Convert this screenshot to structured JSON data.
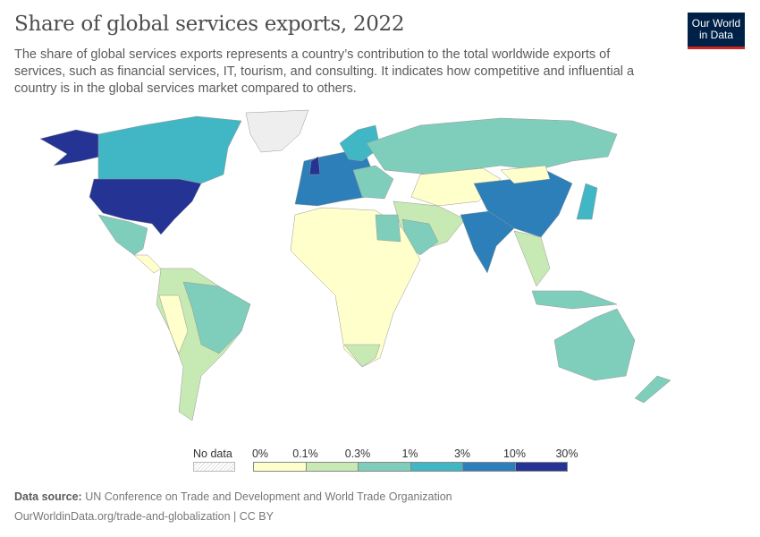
{
  "title": "Share of global services exports, 2022",
  "subtitle": "The share of global services exports represents a country’s contribution to the total worldwide exports of services, such as financial services, IT, tourism, and consulting. It indicates how competitive and influential a country is in the global services market compared to others.",
  "logo": "Our World in Data",
  "legend": {
    "no_data": "No data",
    "ticks": [
      "0%",
      "0.1%",
      "0.3%",
      "1%",
      "3%",
      "10%",
      "30%"
    ],
    "colors": [
      "#ffffcc",
      "#c7e9b4",
      "#7fcdbb",
      "#41b6c4",
      "#2c7fb8",
      "#253494"
    ]
  },
  "footer": {
    "source_label": "Data source:",
    "source": "UN Conference on Trade and Development and World Trade Organization",
    "url": "OurWorldinData.org/trade-and-globalization | CC BY"
  }
}
